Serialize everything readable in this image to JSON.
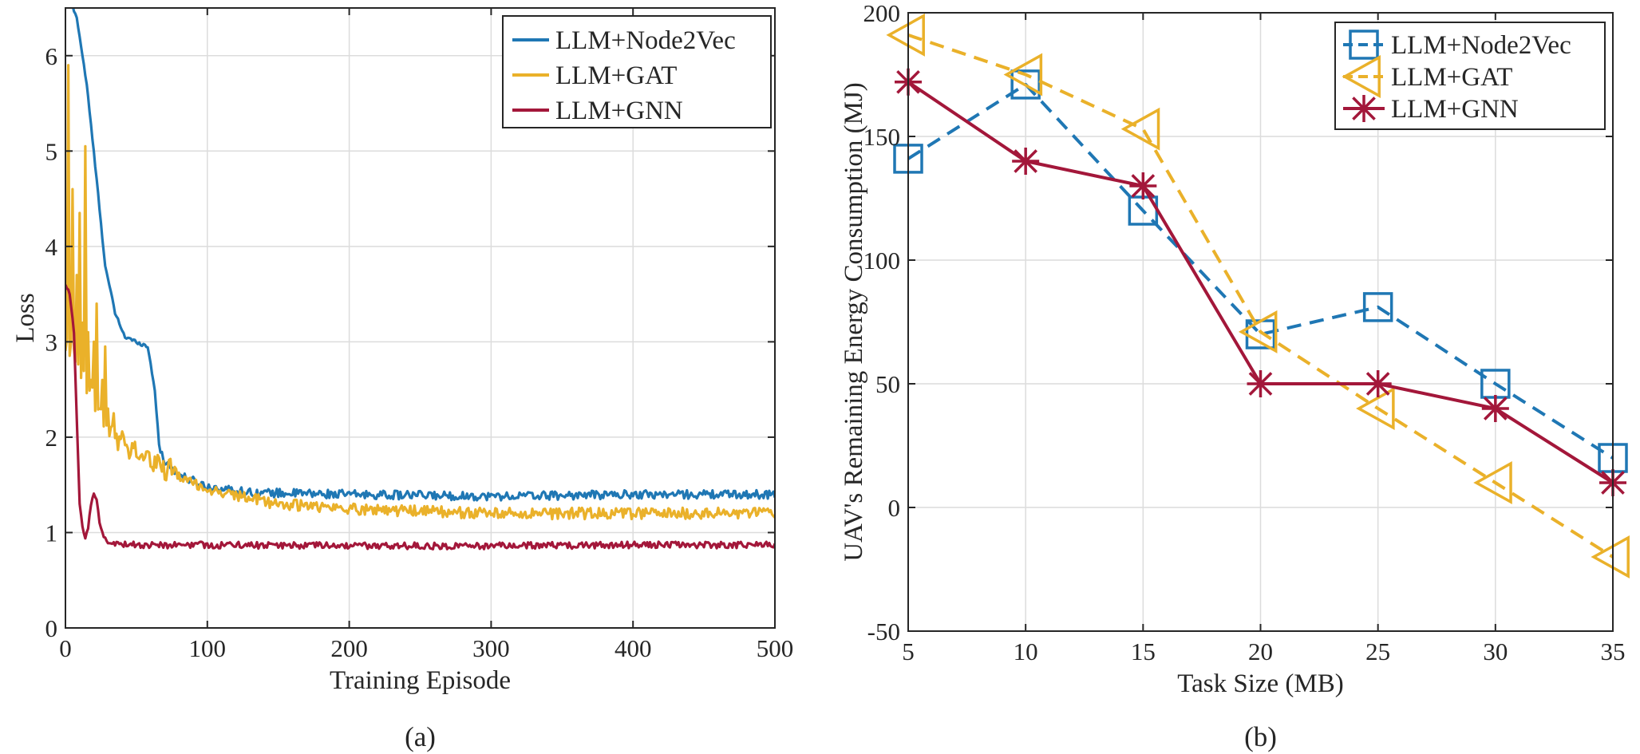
{
  "colors": {
    "node2vec": "#1f77b4",
    "gat": "#eab12a",
    "gnn": "#a3173a",
    "grid": "#dcdcdc",
    "axis": "#262626"
  },
  "chart_data": [
    {
      "id": "a",
      "type": "line",
      "caption": "(a)",
      "xlabel": "Training Episode",
      "ylabel": "Loss",
      "xlim": [
        0,
        500
      ],
      "ylim": [
        0,
        6.5
      ],
      "xticks": [
        0,
        100,
        200,
        300,
        400,
        500
      ],
      "yticks": [
        0,
        1,
        2,
        3,
        4,
        5,
        6
      ],
      "grid": true,
      "legend_position": "top-right",
      "series": [
        {
          "key": "node2vec",
          "name": "LLM+Node2Vec",
          "color": "#1f77b4",
          "anchors": [
            [
              0,
              6.5
            ],
            [
              3,
              6.6
            ],
            [
              8,
              6.4
            ],
            [
              15,
              5.7
            ],
            [
              22,
              4.7
            ],
            [
              28,
              3.8
            ],
            [
              35,
              3.3
            ],
            [
              42,
              3.05
            ],
            [
              50,
              3.0
            ],
            [
              58,
              2.95
            ],
            [
              63,
              2.5
            ],
            [
              66,
              1.9
            ],
            [
              70,
              1.75
            ],
            [
              80,
              1.6
            ],
            [
              100,
              1.48
            ],
            [
              130,
              1.42
            ],
            [
              200,
              1.4
            ],
            [
              300,
              1.38
            ],
            [
              400,
              1.4
            ],
            [
              500,
              1.4
            ]
          ],
          "noise": 0.045,
          "tail_noise_from": 66
        },
        {
          "key": "gat",
          "name": "LLM+GAT",
          "color": "#eab12a",
          "anchors": [
            [
              0,
              3.0
            ],
            [
              30,
              2.05
            ],
            [
              60,
              1.75
            ],
            [
              80,
              1.6
            ],
            [
              100,
              1.45
            ],
            [
              150,
              1.3
            ],
            [
              200,
              1.25
            ],
            [
              300,
              1.2
            ],
            [
              400,
              1.2
            ],
            [
              500,
              1.2
            ]
          ],
          "spikes": [
            [
              2,
              5.9
            ],
            [
              5,
              4.6
            ],
            [
              8,
              3.7
            ],
            [
              10,
              4.35
            ],
            [
              12,
              3.2
            ],
            [
              14,
              5.05
            ],
            [
              16,
              3.1
            ],
            [
              18,
              2.6
            ],
            [
              20,
              3.0
            ],
            [
              22,
              3.4
            ],
            [
              24,
              2.3
            ],
            [
              26,
              2.6
            ],
            [
              28,
              2.95
            ],
            [
              30,
              2.3
            ],
            [
              32,
              2.1
            ],
            [
              34,
              2.25
            ]
          ],
          "noise": 0.06
        },
        {
          "key": "gnn",
          "name": "LLM+GNN",
          "color": "#a3173a",
          "anchors": [
            [
              0,
              3.6
            ],
            [
              3,
              3.5
            ],
            [
              6,
              3.1
            ],
            [
              8,
              2.2
            ],
            [
              10,
              1.3
            ],
            [
              12,
              1.05
            ],
            [
              14,
              0.95
            ],
            [
              16,
              1.05
            ],
            [
              18,
              1.3
            ],
            [
              20,
              1.42
            ],
            [
              22,
              1.35
            ],
            [
              24,
              1.1
            ],
            [
              27,
              0.95
            ],
            [
              30,
              0.9
            ],
            [
              50,
              0.87
            ],
            [
              100,
              0.87
            ],
            [
              200,
              0.86
            ],
            [
              300,
              0.86
            ],
            [
              400,
              0.87
            ],
            [
              500,
              0.87
            ]
          ],
          "noise": 0.035,
          "tail_noise_from": 30
        }
      ]
    },
    {
      "id": "b",
      "type": "line",
      "caption": "(b)",
      "xlabel": "Task Size (MB)",
      "ylabel": "UAV's Remaining Energy Consumption (MJ)",
      "xlim": [
        5,
        35
      ],
      "ylim": [
        -50,
        200
      ],
      "xticks": [
        5,
        10,
        15,
        20,
        25,
        30,
        35
      ],
      "yticks": [
        -50,
        0,
        50,
        100,
        150,
        200
      ],
      "grid": true,
      "legend_position": "top-right",
      "x": [
        5,
        10,
        15,
        20,
        25,
        30,
        35
      ],
      "series": [
        {
          "key": "node2vec",
          "name": "LLM+Node2Vec",
          "color": "#1f77b4",
          "marker": "square",
          "dash": true,
          "values": [
            141,
            171,
            120,
            70,
            81,
            50,
            20
          ]
        },
        {
          "key": "gat",
          "name": "LLM+GAT",
          "color": "#eab12a",
          "marker": "triangle-left",
          "dash": true,
          "values": [
            191,
            175,
            153,
            71,
            40,
            10,
            -20
          ]
        },
        {
          "key": "gnn",
          "name": "LLM+GNN",
          "color": "#a3173a",
          "marker": "asterisk",
          "dash": false,
          "values": [
            172,
            140,
            130,
            50,
            50,
            40,
            10
          ]
        }
      ]
    }
  ]
}
